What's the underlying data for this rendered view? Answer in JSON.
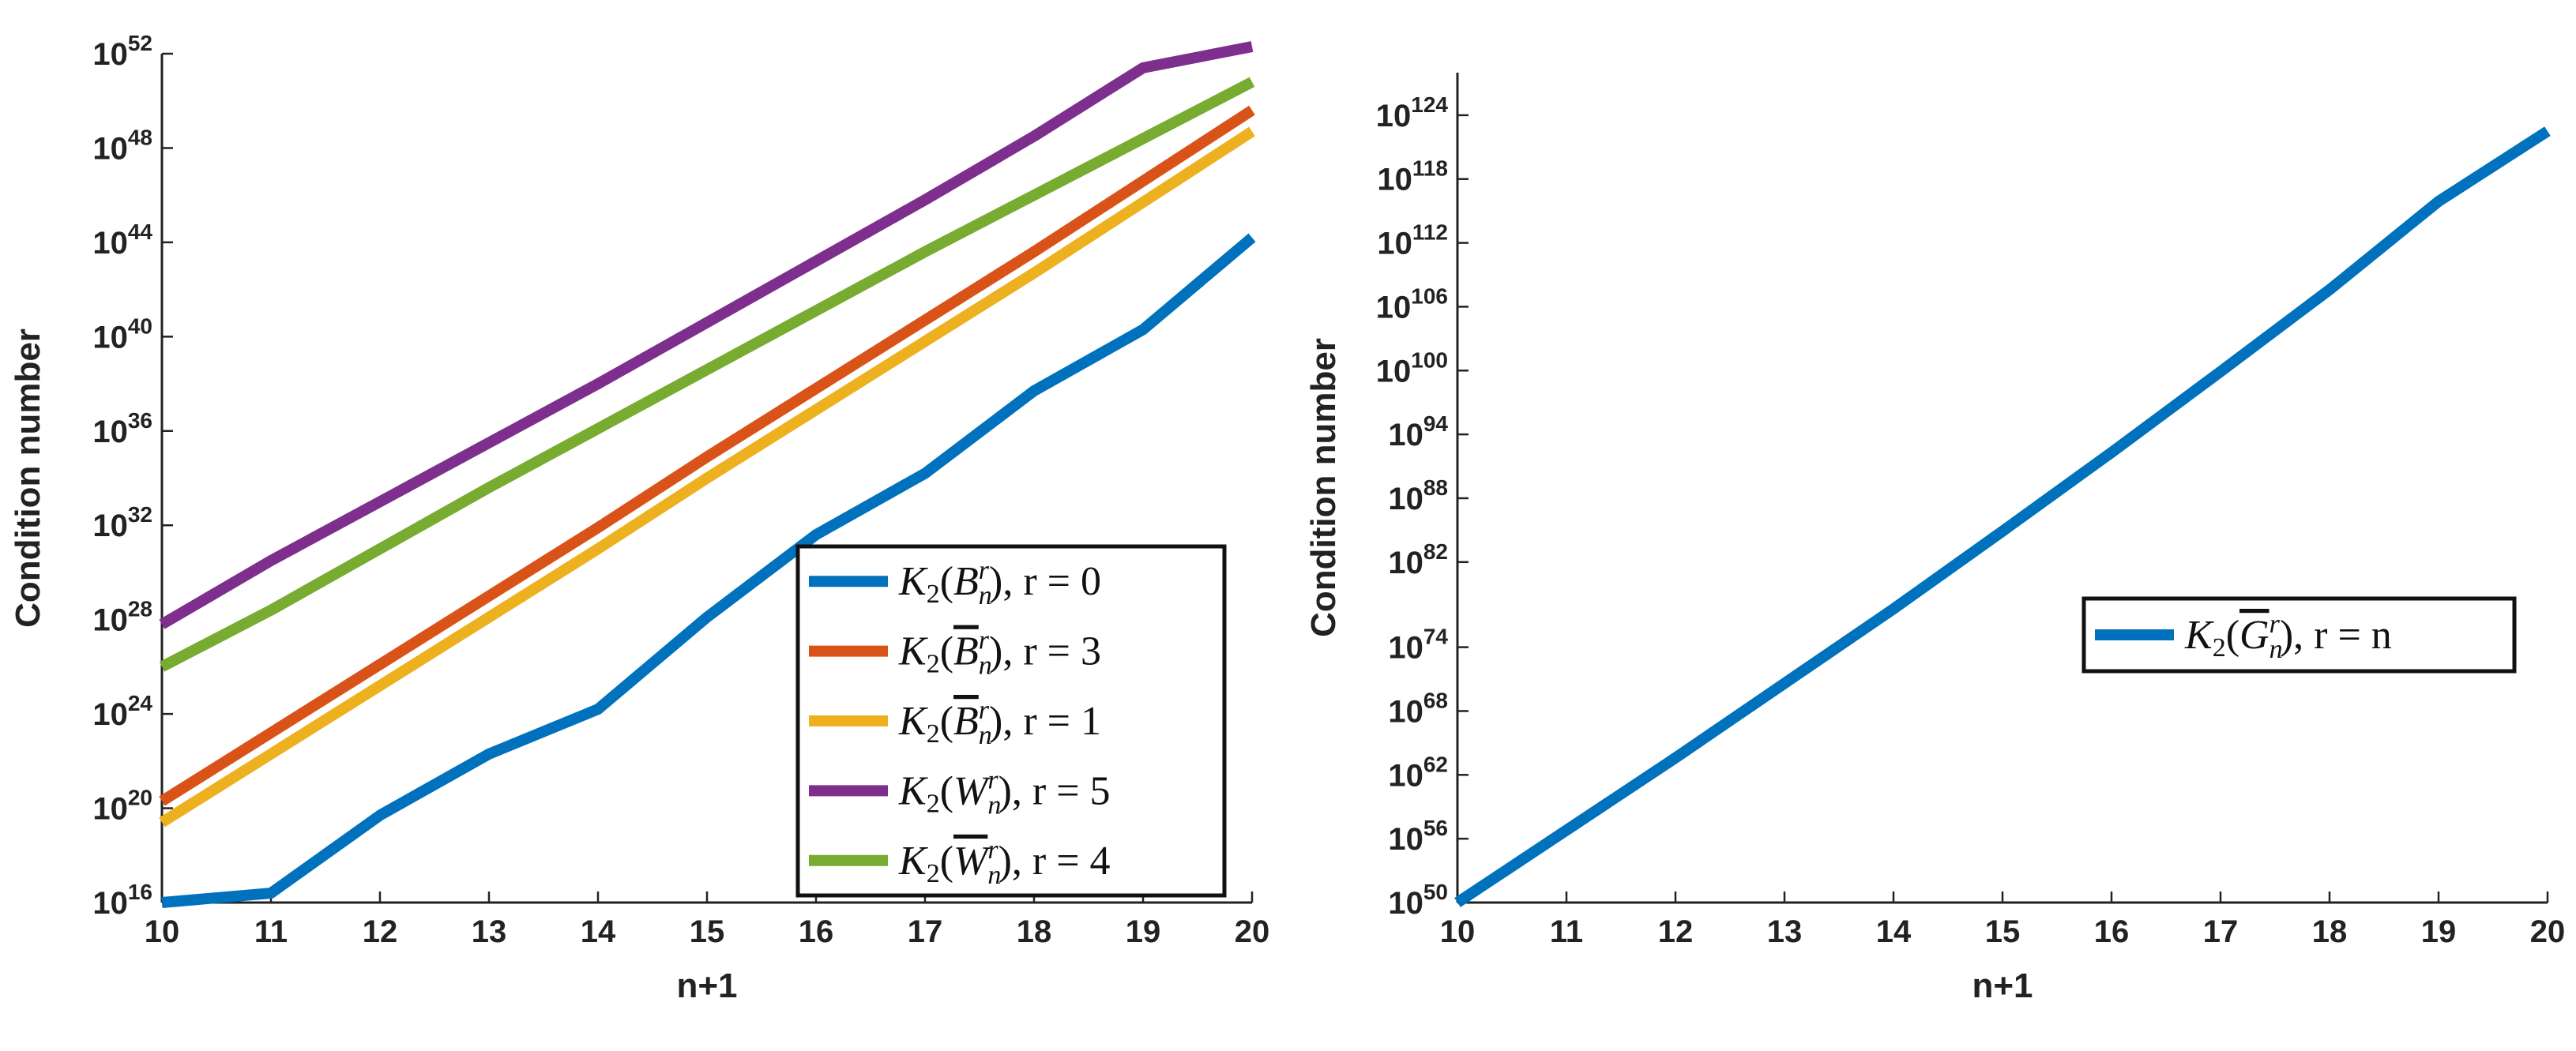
{
  "chart_data": [
    {
      "type": "line",
      "title": "",
      "xlabel": "n+1",
      "ylabel": "Condition number",
      "yscale": "log",
      "x": [
        10,
        11,
        12,
        13,
        14,
        15,
        16,
        17,
        18,
        19,
        20
      ],
      "xlim": [
        10,
        20
      ],
      "ylim_exp": [
        16,
        52
      ],
      "ytick_exps": [
        16,
        20,
        24,
        28,
        32,
        36,
        40,
        44,
        48,
        52
      ],
      "legend_position": "bottom-right",
      "series": [
        {
          "name": "K2(B_n^r), r = 0",
          "legend_main": "K",
          "legend_sub": "2",
          "legend_open": "(",
          "legend_sym": "B",
          "legend_bar": false,
          "legend_subsym": "n",
          "legend_supsym": "r",
          "legend_rest": "), r = 0",
          "color": "#0072BD",
          "log10_values": [
            16.0,
            16.4,
            19.7,
            22.3,
            24.2,
            28.1,
            31.6,
            34.2,
            37.7,
            40.3,
            44.2
          ]
        },
        {
          "name": "K2(B̄_n^r), r = 3",
          "legend_main": "K",
          "legend_sub": "2",
          "legend_open": "(",
          "legend_sym": "B",
          "legend_bar": true,
          "legend_subsym": "n",
          "legend_supsym": "r",
          "legend_rest": "), r = 3",
          "color": "#D95319",
          "log10_values": [
            20.3,
            23.2,
            26.1,
            29.0,
            31.9,
            34.9,
            37.8,
            40.7,
            43.6,
            46.6,
            49.6
          ]
        },
        {
          "name": "K2(B̄_n^r), r = 1",
          "legend_main": "K",
          "legend_sub": "2",
          "legend_open": "(",
          "legend_sym": "B",
          "legend_bar": true,
          "legend_subsym": "n",
          "legend_supsym": "r",
          "legend_rest": "), r = 1",
          "color": "#EDB120",
          "log10_values": [
            19.4,
            22.3,
            25.2,
            28.1,
            31.0,
            34.0,
            36.9,
            39.8,
            42.7,
            45.7,
            48.7
          ]
        },
        {
          "name": "K2(W_n^r), r = 5",
          "legend_main": "K",
          "legend_sub": "2",
          "legend_open": "(",
          "legend_sym": "W",
          "legend_bar": false,
          "legend_subsym": "n",
          "legend_supsym": "r",
          "legend_rest": "), r = 5",
          "color": "#7E2F8E",
          "log10_values": [
            27.8,
            30.5,
            33.0,
            35.5,
            38.0,
            40.6,
            43.2,
            45.8,
            48.5,
            51.4,
            52.3
          ]
        },
        {
          "name": "K2(W̄_n^r), r = 4",
          "legend_main": "K",
          "legend_sub": "2",
          "legend_open": "(",
          "legend_sym": "W",
          "legend_bar": true,
          "legend_subsym": "n",
          "legend_supsym": "r",
          "legend_rest": "), r = 4",
          "color": "#77AC30",
          "log10_values": [
            26.0,
            28.4,
            31.0,
            33.6,
            36.1,
            38.6,
            41.1,
            43.6,
            46.0,
            48.4,
            50.8
          ]
        }
      ]
    },
    {
      "type": "line",
      "title": "",
      "xlabel": "n+1",
      "ylabel": "Condition number",
      "yscale": "log",
      "x": [
        10,
        11,
        12,
        13,
        14,
        15,
        16,
        17,
        18,
        19,
        20
      ],
      "xlim": [
        10,
        20
      ],
      "ylim_exp": [
        50,
        128
      ],
      "ytick_exps": [
        50,
        56,
        62,
        68,
        74,
        82,
        88,
        94,
        100,
        106,
        112,
        118,
        124
      ],
      "legend_position": "right",
      "series": [
        {
          "name": "K2(Ḡ_n^r), r = n",
          "legend_main": "K",
          "legend_sub": "2",
          "legend_open": "(",
          "legend_sym": "G",
          "legend_bar": true,
          "legend_subsym": "n",
          "legend_supsym": "r",
          "legend_rest": "), r = n",
          "color": "#0072BD",
          "log10_values": [
            50.0,
            56.8,
            63.6,
            70.6,
            77.6,
            84.9,
            92.3,
            99.9,
            107.6,
            115.9,
            122.5
          ]
        }
      ]
    }
  ]
}
